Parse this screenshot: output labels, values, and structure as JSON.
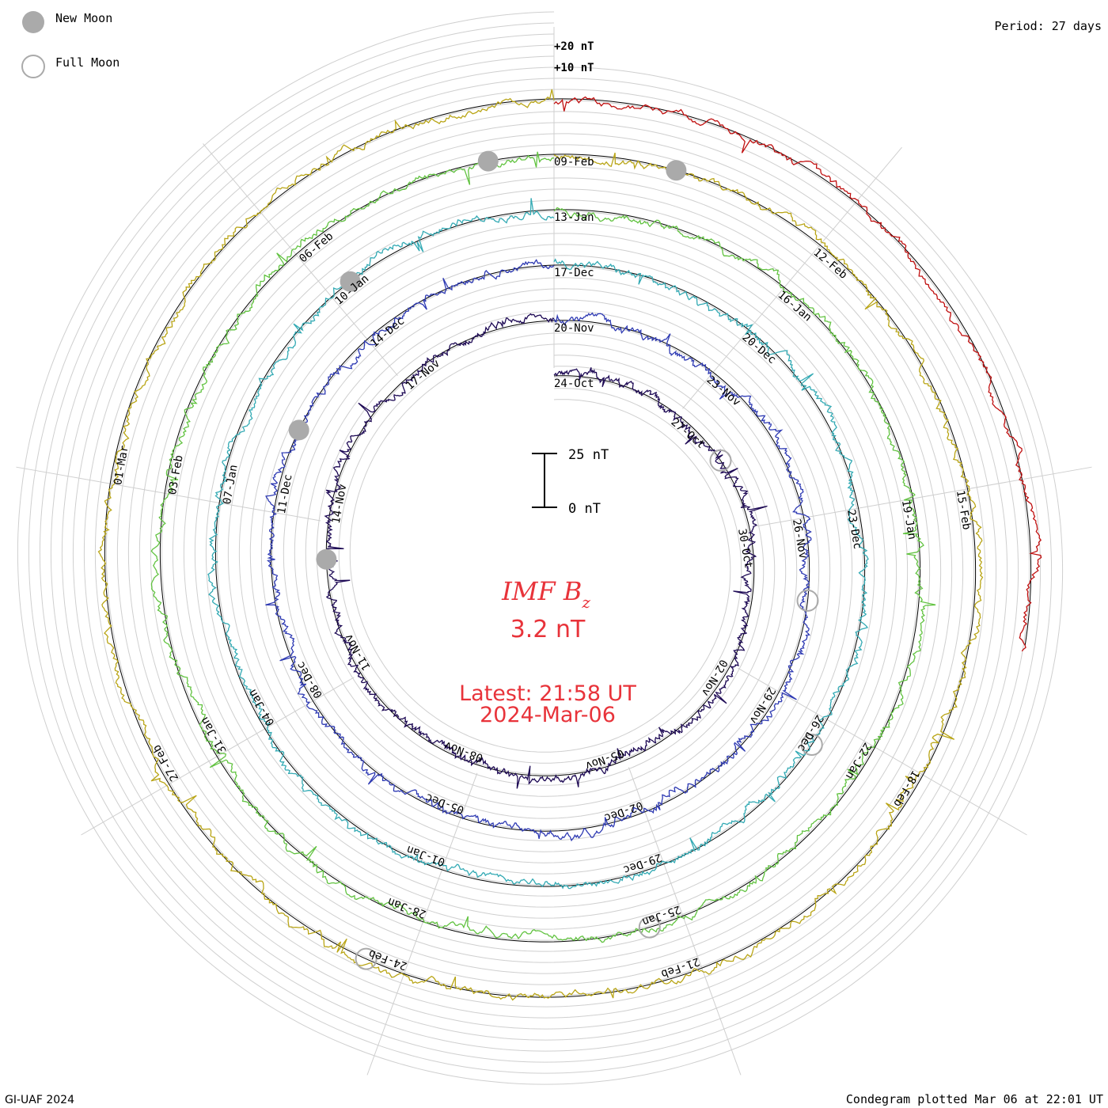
{
  "chart_data": {
    "type": "line",
    "subtype": "polar-spiral-condegram",
    "title": "IMF Bz",
    "title_base": "IMF B",
    "title_subscript": "z",
    "current_value": "3.2 nT",
    "latest_label": "Latest: 21:58 UT",
    "latest_date": "2024-Mar-06",
    "period_label": "Period: 27 days",
    "credit": "GI-UAF 2024",
    "plotted_label": "Condegram plotted Mar 06 at 22:01 UT",
    "scale_bar": {
      "top_label": "25 nT",
      "bottom_label": "0 nT"
    },
    "outer_scale_labels": [
      "+20 nT",
      "+10 nT"
    ],
    "legend": [
      {
        "name": "New Moon",
        "marker": "filled-gray-circle"
      },
      {
        "name": "Full Moon",
        "marker": "open-gray-circle"
      }
    ],
    "rotations": [
      {
        "index": 0,
        "start": "2023-Oct-24",
        "color": "#1e0a55",
        "date_labels": [
          "24-Oct",
          "27-Oct",
          "30-Oct",
          "02-Nov",
          "05-Nov",
          "08-Nov",
          "11-Nov",
          "14-Nov",
          "17-Nov"
        ]
      },
      {
        "index": 1,
        "start": "2023-Nov-20",
        "color": "#2e3ab3",
        "date_labels": [
          "20-Nov",
          "23-Nov",
          "26-Nov",
          "29-Nov",
          "02-Dec",
          "05-Dec",
          "08-Dec",
          "11-Dec",
          "14-Dec"
        ]
      },
      {
        "index": 2,
        "start": "2023-Dec-17",
        "color": "#33aab4",
        "date_labels": [
          "17-Dec",
          "20-Dec",
          "23-Dec",
          "26-Dec",
          "29-Dec",
          "01-Jan",
          "04-Jan",
          "07-Jan",
          "10-Jan"
        ]
      },
      {
        "index": 3,
        "start": "2024-Jan-13",
        "color": "#62c341",
        "date_labels": [
          "13-Jan",
          "16-Jan",
          "19-Jan",
          "22-Jan",
          "25-Jan",
          "28-Jan",
          "31-Jan",
          "03-Feb",
          "06-Feb"
        ]
      },
      {
        "index": 4,
        "start": "2024-Feb-09",
        "color": "#b9a516",
        "date_labels": [
          "09-Feb",
          "12-Feb",
          "15-Feb",
          "18-Feb",
          "21-Feb",
          "24-Feb",
          "27-Feb",
          "01-Mar"
        ]
      },
      {
        "index": 5,
        "start": "2024-Mar-07",
        "color": "#c01010",
        "date_labels": []
      }
    ],
    "moon_phases": [
      {
        "phase": "new",
        "rotation": 0,
        "day_offset": 20.3
      },
      {
        "phase": "new",
        "rotation": 1,
        "day_offset": 22.3
      },
      {
        "phase": "new",
        "rotation": 2,
        "day_offset": 24.3
      },
      {
        "phase": "new",
        "rotation": 3,
        "day_offset": 26.3
      },
      {
        "phase": "new",
        "rotation": 4,
        "day_offset": 1.3
      },
      {
        "phase": "full",
        "rotation": 0,
        "day_offset": 4.4
      },
      {
        "phase": "full",
        "rotation": 1,
        "day_offset": 7.4
      },
      {
        "phase": "full",
        "rotation": 2,
        "day_offset": 9.4
      },
      {
        "phase": "full",
        "rotation": 3,
        "day_offset": 12.4
      },
      {
        "phase": "full",
        "rotation": 4,
        "day_offset": 15.4
      }
    ],
    "value_range_nT": [
      -25,
      25
    ],
    "series_note": "Bz traces: typical range roughly -20 to +20 nT around each rotation baseline"
  }
}
